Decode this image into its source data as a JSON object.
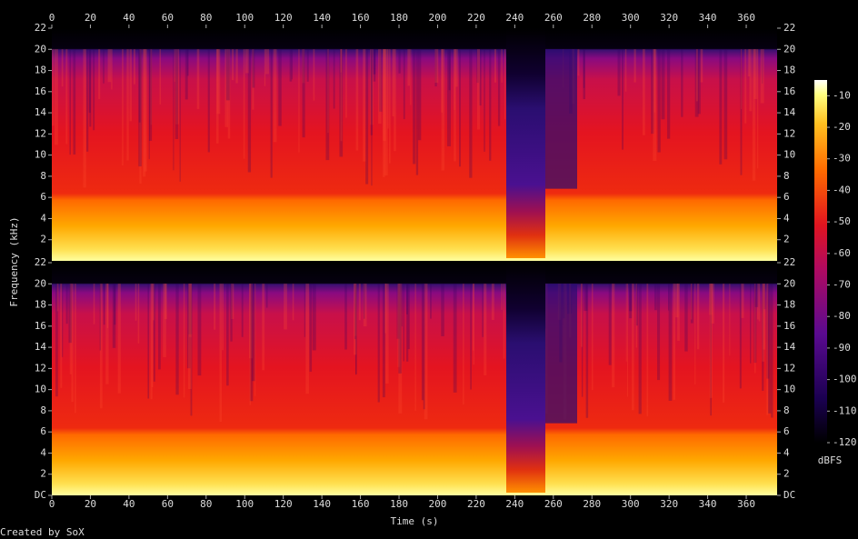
{
  "chart_data": {
    "type": "spectrogram",
    "x_label": "Time (s)",
    "y_label": "Frequency (kHz)",
    "xlim": [
      0,
      376
    ],
    "xticks": [
      0,
      20,
      40,
      60,
      80,
      100,
      120,
      140,
      160,
      180,
      200,
      220,
      240,
      260,
      280,
      300,
      320,
      340,
      360
    ],
    "channels": [
      {
        "ylim": [
          0,
          22
        ],
        "yticks": [
          2,
          4,
          6,
          8,
          10,
          12,
          14,
          16,
          18,
          20,
          22
        ]
      },
      {
        "ylim": [
          0,
          22
        ],
        "yticks": [
          {
            "value": 0,
            "label": "DC"
          },
          2,
          4,
          6,
          8,
          10,
          12,
          14,
          16,
          18,
          20,
          22
        ]
      }
    ],
    "colorbar": {
      "label": "dBFS",
      "zlim": [
        -120,
        -5
      ],
      "ticks": [
        -10,
        -20,
        -30,
        -40,
        -50,
        -60,
        -70,
        -80,
        -90,
        -100,
        -110,
        -120
      ]
    },
    "credit": "Created by SoX"
  }
}
